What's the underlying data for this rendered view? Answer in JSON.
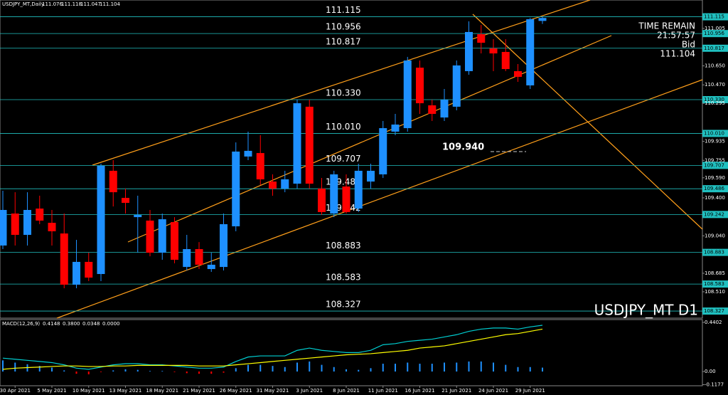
{
  "chart_data": {
    "type": "candlestick",
    "header": {
      "symbol": "USDJPY_MT,Daily"
    },
    "watermark": "USDJPY_MT D1",
    "info": {
      "time_label": "TIME REMAIN",
      "time": "21:57:57",
      "bid_label": "Bid"
    },
    "annotation": "109.940",
    "categories": [
      null,
      "30 Apr 2021",
      null,
      null,
      "5 May 2021",
      null,
      null,
      "10 May 2021",
      null,
      null,
      "13 May 2021",
      null,
      null,
      "18 May 2021",
      null,
      null,
      "21 May 2021",
      null,
      null,
      "26 May 2021",
      null,
      null,
      "31 May 2021",
      null,
      null,
      "3 Jun 2021",
      null,
      null,
      "8 Jun 2021",
      null,
      null,
      "11 Jun 2021",
      null,
      null,
      "16 Jun 2021",
      null,
      null,
      "21 Jun 2021",
      null,
      null,
      "24 Jun 2021",
      null,
      null,
      "29 Jun 2021",
      null
    ],
    "up_color": "#1e90ff",
    "down_color": "#ff0000",
    "open": [
      108.948,
      109.251,
      109.049,
      109.298,
      109.163,
      109.062,
      108.577,
      108.793,
      108.678,
      109.656,
      109.399,
      109.217,
      109.184,
      108.88,
      109.17,
      108.745,
      108.914,
      108.725,
      108.745,
      109.13,
      109.791,
      109.824,
      109.554,
      109.487,
      109.534,
      110.263,
      109.487,
      109.251,
      109.507,
      109.298,
      109.554,
      109.622,
      110.027,
      110.06,
      110.633,
      110.276,
      110.161,
      110.263,
      110.6,
      110.95,
      110.815,
      110.782,
      110.6,
      110.465,
      111.076
    ],
    "high": [
      109.467,
      109.453,
      109.453,
      109.42,
      109.285,
      109.251,
      109.002,
      108.88,
      109.723,
      109.757,
      109.487,
      109.42,
      109.285,
      109.251,
      109.217,
      109.049,
      108.981,
      108.88,
      109.251,
      109.925,
      110.027,
      109.993,
      109.622,
      109.656,
      110.33,
      110.33,
      109.588,
      109.656,
      109.622,
      109.723,
      109.723,
      110.128,
      110.195,
      110.735,
      110.701,
      110.33,
      110.431,
      110.701,
      111.072,
      111.038,
      110.903,
      110.903,
      110.667,
      111.105,
      111.118
    ],
    "low": [
      108.914,
      108.948,
      108.948,
      109.15,
      108.948,
      108.543,
      108.543,
      108.611,
      108.611,
      109.318,
      109.251,
      108.88,
      108.846,
      108.813,
      108.779,
      108.712,
      108.725,
      108.698,
      108.712,
      109.083,
      109.757,
      109.521,
      109.42,
      109.453,
      109.487,
      109.487,
      109.238,
      109.217,
      109.251,
      109.265,
      109.487,
      109.588,
      109.993,
      110.027,
      110.195,
      110.128,
      110.128,
      110.229,
      110.566,
      110.768,
      110.6,
      110.6,
      110.499,
      110.431,
      111.047
    ],
    "close": [
      109.285,
      109.049,
      109.285,
      109.184,
      109.083,
      108.577,
      108.793,
      108.644,
      109.703,
      109.453,
      109.352,
      109.238,
      108.88,
      109.197,
      108.813,
      108.914,
      108.766,
      108.766,
      109.15,
      109.838,
      109.845,
      109.575,
      109.487,
      109.575,
      110.296,
      109.534,
      109.265,
      109.622,
      109.265,
      109.656,
      109.656,
      110.06,
      110.094,
      110.701,
      110.296,
      110.195,
      110.33,
      110.654,
      110.971,
      110.869,
      110.768,
      110.62,
      110.546,
      111.092,
      111.104
    ],
    "ylim": [
      108.26,
      111.274
    ],
    "yticks": [
      111.005,
      {
        "value": 110.65,
        "label": "110.650"
      },
      {
        "value": 110.47,
        "label": "110.470"
      },
      110.295,
      109.935,
      109.755,
      {
        "value": 109.59,
        "label": "109.590"
      },
      {
        "value": 109.4,
        "label": "109.400"
      },
      {
        "value": 109.04,
        "label": "109.040"
      },
      108.685,
      {
        "value": 108.51,
        "label": "108.510"
      }
    ],
    "levels_color": "#20c0c0",
    "levels": [
      {
        "value": 111.115,
        "label": "111.115"
      },
      {
        "value": 110.956,
        "label": "110.956"
      },
      {
        "value": 110.817,
        "label": "110.817"
      },
      {
        "value": 110.33,
        "label": "110.330"
      },
      {
        "value": 110.01,
        "label": "110.010"
      },
      {
        "value": 109.707,
        "label": "109.707"
      },
      {
        "value": 109.486,
        "label": "109.486"
      },
      {
        "value": 109.242,
        "label": "109.242"
      },
      {
        "value": 108.883,
        "label": "108.883"
      },
      {
        "value": 108.583,
        "label": "108.583"
      },
      {
        "value": 108.327,
        "label": "108.327"
      }
    ],
    "macd": {
      "header": [
        "MACD(12,26,9)",
        "0.4148",
        "0.3800",
        "0.0348",
        "0.0000"
      ],
      "ylim": [
        -0.1275,
        0.4657
      ],
      "yticks": [
        0.4402,
        {
          "value": 0,
          "label": "0.00"
        },
        -0.1177
      ],
      "histogram": {
        "pos_color": "#1e90ff",
        "neg_color": "#ff0000",
        "values": [
          0.1,
          0.08,
          0.065,
          0.05,
          0.035,
          0.01,
          -0.02,
          -0.025,
          -0.005,
          0.01,
          0.02,
          0.015,
          0.005,
          0.005,
          -0.005,
          -0.015,
          -0.02,
          -0.02,
          -0.01,
          0.03,
          0.06,
          0.06,
          0.05,
          0.04,
          0.08,
          0.09,
          0.06,
          0.04,
          0.02,
          0.015,
          0.03,
          0.07,
          0.07,
          0.08,
          0.07,
          0.07,
          0.08,
          0.08,
          0.09,
          0.09,
          0.08,
          0.06,
          0.04,
          0.04,
          0.0348
        ]
      },
      "series": [
        {
          "color": "#00ced1",
          "values": [
            0.12,
            0.11,
            0.1,
            0.09,
            0.08,
            0.06,
            0.03,
            0.02,
            0.04,
            0.06,
            0.07,
            0.07,
            0.06,
            0.06,
            0.05,
            0.04,
            0.03,
            0.03,
            0.04,
            0.09,
            0.13,
            0.14,
            0.14,
            0.14,
            0.19,
            0.21,
            0.19,
            0.18,
            0.17,
            0.17,
            0.19,
            0.24,
            0.25,
            0.27,
            0.28,
            0.29,
            0.31,
            0.33,
            0.36,
            0.38,
            0.39,
            0.39,
            0.38,
            0.4,
            0.4148
          ]
        },
        {
          "color": "#ffff00",
          "values": [
            0.02,
            0.03,
            0.035,
            0.04,
            0.045,
            0.05,
            0.05,
            0.045,
            0.045,
            0.05,
            0.05,
            0.055,
            0.055,
            0.055,
            0.055,
            0.055,
            0.05,
            0.05,
            0.05,
            0.06,
            0.07,
            0.08,
            0.09,
            0.1,
            0.11,
            0.12,
            0.13,
            0.14,
            0.15,
            0.155,
            0.16,
            0.17,
            0.18,
            0.19,
            0.21,
            0.22,
            0.23,
            0.25,
            0.27,
            0.29,
            0.31,
            0.33,
            0.34,
            0.36,
            0.38
          ]
        }
      ]
    }
  }
}
